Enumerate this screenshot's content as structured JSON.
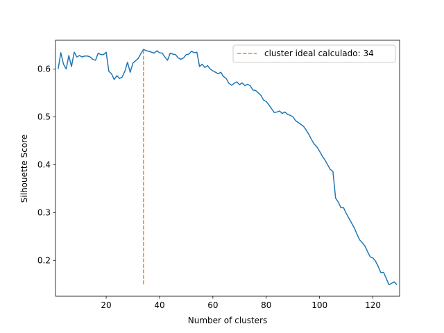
{
  "chart_data": {
    "type": "line",
    "title": "",
    "xlabel": "Number of clusters",
    "ylabel": "Silhouette Score",
    "xlim": [
      1,
      130
    ],
    "ylim": [
      0.125,
      0.66
    ],
    "xticks": [
      20,
      40,
      60,
      80,
      100,
      120
    ],
    "xtick_labels": [
      "20",
      "40",
      "60",
      "80",
      "100",
      "120"
    ],
    "yticks": [
      0.2,
      0.3,
      0.4,
      0.5,
      0.6
    ],
    "ytick_labels": [
      "0.2",
      "0.3",
      "0.4",
      "0.5",
      "0.6"
    ],
    "grid": false,
    "legend_position": "top-right",
    "colors": {
      "series": "#1f77b4",
      "ideal": "#ff7f0e"
    },
    "series": [
      {
        "x": [
          2,
          3,
          4,
          5,
          6,
          7,
          8,
          9,
          10,
          11,
          12,
          13,
          14,
          15,
          16,
          17,
          18,
          19,
          20,
          21,
          22,
          23,
          24,
          25,
          26,
          27,
          28,
          29,
          30,
          31,
          32,
          33,
          34,
          35,
          36,
          37,
          38,
          39,
          40,
          41,
          42,
          43,
          44,
          45,
          46,
          47,
          48,
          49,
          50,
          51,
          52,
          53,
          54,
          55,
          56,
          57,
          58,
          59,
          60,
          61,
          62,
          63,
          64,
          65,
          66,
          67,
          68,
          69,
          70,
          71,
          72,
          73,
          74,
          75,
          76,
          77,
          78,
          79,
          80,
          81,
          82,
          83,
          84,
          85,
          86,
          87,
          88,
          89,
          90,
          91,
          92,
          93,
          94,
          95,
          96,
          97,
          98,
          99,
          100,
          101,
          102,
          103,
          104,
          105,
          106,
          107,
          108,
          109,
          110,
          111,
          112,
          113,
          114,
          115,
          116,
          117,
          118,
          119,
          120,
          121,
          122,
          123,
          124,
          125,
          126,
          127,
          128,
          129
        ],
        "values": [
          0.6,
          0.634,
          0.61,
          0.6,
          0.628,
          0.605,
          0.635,
          0.625,
          0.628,
          0.625,
          0.627,
          0.627,
          0.625,
          0.62,
          0.618,
          0.633,
          0.63,
          0.63,
          0.635,
          0.595,
          0.59,
          0.578,
          0.586,
          0.58,
          0.583,
          0.595,
          0.614,
          0.593,
          0.612,
          0.617,
          0.622,
          0.632,
          0.641,
          0.638,
          0.637,
          0.635,
          0.633,
          0.638,
          0.634,
          0.633,
          0.625,
          0.618,
          0.633,
          0.631,
          0.63,
          0.623,
          0.62,
          0.623,
          0.63,
          0.631,
          0.637,
          0.634,
          0.635,
          0.605,
          0.61,
          0.603,
          0.607,
          0.6,
          0.596,
          0.593,
          0.59,
          0.593,
          0.584,
          0.58,
          0.57,
          0.566,
          0.57,
          0.573,
          0.567,
          0.571,
          0.565,
          0.568,
          0.565,
          0.556,
          0.555,
          0.55,
          0.545,
          0.535,
          0.532,
          0.525,
          0.517,
          0.509,
          0.51,
          0.512,
          0.507,
          0.51,
          0.505,
          0.503,
          0.5,
          0.492,
          0.488,
          0.484,
          0.48,
          0.472,
          0.463,
          0.452,
          0.443,
          0.437,
          0.428,
          0.418,
          0.41,
          0.4,
          0.39,
          0.386,
          0.33,
          0.322,
          0.31,
          0.31,
          0.298,
          0.288,
          0.278,
          0.268,
          0.255,
          0.243,
          0.237,
          0.23,
          0.218,
          0.207,
          0.205,
          0.198,
          0.187,
          0.174,
          0.175,
          0.162,
          0.149,
          0.152,
          0.155,
          0.149
        ]
      }
    ],
    "ideal": {
      "label": "cluster ideal calculado: 34",
      "x": 34,
      "y_from": 0.15,
      "y_to": 0.641
    }
  }
}
